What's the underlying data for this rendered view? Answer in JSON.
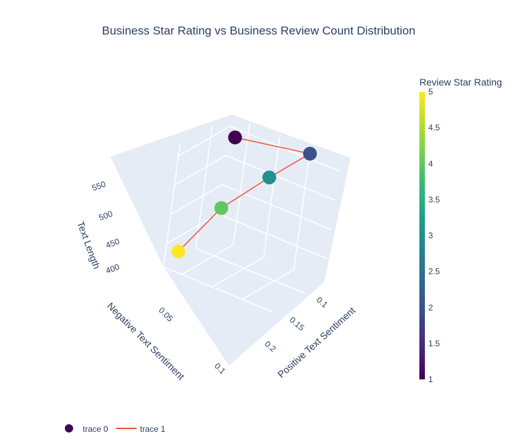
{
  "chart_data": {
    "type": "scatter",
    "title": "Business Star Rating vs Business Review Count Distribution",
    "scene": {
      "x_axis": {
        "title": "Positive Text Sentiment",
        "range": [
          0.07,
          0.25
        ],
        "ticks": [
          "0.1",
          "0.15",
          "0.2"
        ]
      },
      "y_axis": {
        "title": "Negative Text Sentiment",
        "range": [
          0.02,
          0.1
        ],
        "ticks": [
          "0.05",
          "0.1"
        ]
      },
      "z_axis": {
        "title": "Text Length",
        "range": [
          360,
          570
        ],
        "ticks": [
          "400",
          "450",
          "500",
          "550"
        ]
      },
      "background_color": "#e5ecf6",
      "grid": true
    },
    "series": [
      {
        "name": "trace 0",
        "mode": "markers",
        "points": [
          {
            "x": 0.09,
            "y": 0.1,
            "z": 395,
            "color_value": 5
          },
          {
            "x": 0.12,
            "y": 0.07,
            "z": 463,
            "color_value": 4
          },
          {
            "x": 0.17,
            "y": 0.05,
            "z": 524,
            "color_value": 3
          },
          {
            "x": 0.21,
            "y": 0.03,
            "z": 569,
            "color_value": 2
          },
          {
            "x": 0.08,
            "y": 0.02,
            "z": 535,
            "color_value": 1
          }
        ]
      },
      {
        "name": "trace 1",
        "mode": "lines",
        "color": "#ef553b",
        "connects": "trace 0"
      }
    ],
    "colorbar": {
      "title": "Review Star Rating",
      "colorscale": "Viridis",
      "range": [
        1,
        5
      ],
      "ticks": [
        "1",
        "1.5",
        "2",
        "2.5",
        "3",
        "3.5",
        "4",
        "4.5",
        "5"
      ]
    },
    "legend": {
      "placement": "bottom-left",
      "orientation": "horizontal",
      "items": [
        "trace 0",
        "trace 1"
      ]
    }
  }
}
